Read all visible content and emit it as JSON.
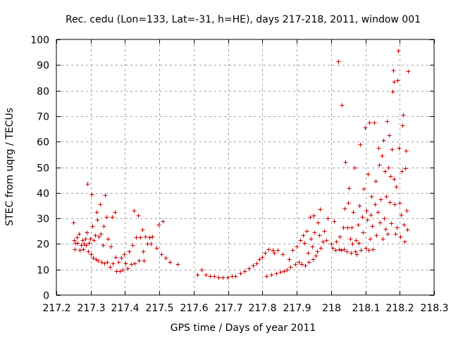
{
  "chart_data": {
    "type": "scatter",
    "title": "Rec. cedu (Lon=133, Lat=-31, h=HE), days 217-218, 2011, window 001",
    "xlabel": "GPS time / Days of year 2011",
    "ylabel": "STEC from uqrg / TECUs",
    "xlim": [
      217.2,
      218.3
    ],
    "ylim": [
      0,
      100
    ],
    "xticks": [
      217.2,
      217.3,
      217.4,
      217.5,
      217.6,
      217.7,
      217.8,
      217.9,
      218,
      218.1,
      218.2,
      218.3
    ],
    "xtick_labels": [
      "217.2",
      "217.3",
      "217.4",
      "217.5",
      "217.6",
      "217.7",
      "217.8",
      "217.9",
      "218",
      "218.1",
      "218.2",
      "218.3"
    ],
    "yticks": [
      0,
      10,
      20,
      30,
      40,
      50,
      60,
      70,
      80,
      90,
      100
    ],
    "ytick_labels": [
      "0",
      "10",
      "20",
      "30",
      "40",
      "50",
      "60",
      "70",
      "80",
      "90",
      "100"
    ],
    "grid": true,
    "marker": "+",
    "color": "#cc0000",
    "series": [
      {
        "name": "STEC",
        "points": [
          [
            217.25,
            28.5
          ],
          [
            217.252,
            21.5
          ],
          [
            217.254,
            18.0
          ],
          [
            217.256,
            20.5
          ],
          [
            217.26,
            22.5
          ],
          [
            217.262,
            20.5
          ],
          [
            217.265,
            24.0
          ],
          [
            217.268,
            17.5
          ],
          [
            217.272,
            19.5
          ],
          [
            217.275,
            21.5
          ],
          [
            217.278,
            18.0
          ],
          [
            217.281,
            20.0
          ],
          [
            217.284,
            22.0
          ],
          [
            217.287,
            19.5
          ],
          [
            217.289,
            24.5
          ],
          [
            217.29,
            43.5
          ],
          [
            217.292,
            17.0
          ],
          [
            217.295,
            20.5
          ],
          [
            217.298,
            22.0
          ],
          [
            217.3,
            16.0
          ],
          [
            217.302,
            39.5
          ],
          [
            217.304,
            27.0
          ],
          [
            217.306,
            14.5
          ],
          [
            217.308,
            21.5
          ],
          [
            217.312,
            23.5
          ],
          [
            217.315,
            14.0
          ],
          [
            217.318,
            32.5
          ],
          [
            217.32,
            29.5
          ],
          [
            217.322,
            13.5
          ],
          [
            217.324,
            23.0
          ],
          [
            217.328,
            35.5
          ],
          [
            217.33,
            24.0
          ],
          [
            217.332,
            13.0
          ],
          [
            217.335,
            19.5
          ],
          [
            217.338,
            27.0
          ],
          [
            217.34,
            12.5
          ],
          [
            217.342,
            39.0
          ],
          [
            217.345,
            30.5
          ],
          [
            217.348,
            13.0
          ],
          [
            217.35,
            22.0
          ],
          [
            217.355,
            11.0
          ],
          [
            217.358,
            19.0
          ],
          [
            217.362,
            30.5
          ],
          [
            217.365,
            12.5
          ],
          [
            217.37,
            32.5
          ],
          [
            217.372,
            15.0
          ],
          [
            217.375,
            9.5
          ],
          [
            217.38,
            13.0
          ],
          [
            217.385,
            9.5
          ],
          [
            217.388,
            14.5
          ],
          [
            217.392,
            10.0
          ],
          [
            217.398,
            16.0
          ],
          [
            217.402,
            12.5
          ],
          [
            217.408,
            10.5
          ],
          [
            217.412,
            17.0
          ],
          [
            217.418,
            12.0
          ],
          [
            217.422,
            19.5
          ],
          [
            217.425,
            33.0
          ],
          [
            217.428,
            12.5
          ],
          [
            217.432,
            22.5
          ],
          [
            217.438,
            31.0
          ],
          [
            217.44,
            13.5
          ],
          [
            217.445,
            22.5
          ],
          [
            217.45,
            25.5
          ],
          [
            217.452,
            17.0
          ],
          [
            217.455,
            13.5
          ],
          [
            217.458,
            23.0
          ],
          [
            217.465,
            20.0
          ],
          [
            217.47,
            22.5
          ],
          [
            217.475,
            20.0
          ],
          [
            217.48,
            23.0
          ],
          [
            217.492,
            18.5
          ],
          [
            217.498,
            27.5
          ],
          [
            217.505,
            16.0
          ],
          [
            217.51,
            29.0
          ],
          [
            217.518,
            14.5
          ],
          [
            217.53,
            13.0
          ],
          [
            217.552,
            12.0
          ],
          [
            217.61,
            8.0
          ],
          [
            217.622,
            10.0
          ],
          [
            217.635,
            8.0
          ],
          [
            217.648,
            7.5
          ],
          [
            217.66,
            7.5
          ],
          [
            217.672,
            7.0
          ],
          [
            217.685,
            7.0
          ],
          [
            217.698,
            7.0
          ],
          [
            217.71,
            7.5
          ],
          [
            217.722,
            7.5
          ],
          [
            217.735,
            8.5
          ],
          [
            217.748,
            9.5
          ],
          [
            217.76,
            10.5
          ],
          [
            217.772,
            11.5
          ],
          [
            217.782,
            12.5
          ],
          [
            217.792,
            14.0
          ],
          [
            217.8,
            15.0
          ],
          [
            217.808,
            16.5
          ],
          [
            217.812,
            7.5
          ],
          [
            217.818,
            18.0
          ],
          [
            217.825,
            8.0
          ],
          [
            217.83,
            17.5
          ],
          [
            217.835,
            16.5
          ],
          [
            217.84,
            8.5
          ],
          [
            217.845,
            17.5
          ],
          [
            217.852,
            9.0
          ],
          [
            217.858,
            16.0
          ],
          [
            217.862,
            9.5
          ],
          [
            217.872,
            10.0
          ],
          [
            217.878,
            14.0
          ],
          [
            217.882,
            11.0
          ],
          [
            217.888,
            17.5
          ],
          [
            217.895,
            12.0
          ],
          [
            217.9,
            19.0
          ],
          [
            217.905,
            13.0
          ],
          [
            217.91,
            21.5
          ],
          [
            217.915,
            12.0
          ],
          [
            217.918,
            23.5
          ],
          [
            217.922,
            20.5
          ],
          [
            217.925,
            11.5
          ],
          [
            217.928,
            25.0
          ],
          [
            217.932,
            16.5
          ],
          [
            217.935,
            13.0
          ],
          [
            217.938,
            30.5
          ],
          [
            217.94,
            22.0
          ],
          [
            217.944,
            19.0
          ],
          [
            217.946,
            14.0
          ],
          [
            217.95,
            31.0
          ],
          [
            217.952,
            24.5
          ],
          [
            217.955,
            15.5
          ],
          [
            217.96,
            17.0
          ],
          [
            217.962,
            28.5
          ],
          [
            217.965,
            23.5
          ],
          [
            217.968,
            33.5
          ],
          [
            217.97,
            18.5
          ],
          [
            217.975,
            21.0
          ],
          [
            217.98,
            25.0
          ],
          [
            217.985,
            21.5
          ],
          [
            217.99,
            30.0
          ],
          [
            218.0,
            20.0
          ],
          [
            218.005,
            18.5
          ],
          [
            218.008,
            29.0
          ],
          [
            218.012,
            17.5
          ],
          [
            218.015,
            21.0
          ],
          [
            218.02,
            91.5
          ],
          [
            218.022,
            18.0
          ],
          [
            218.025,
            23.0
          ],
          [
            218.03,
            17.5
          ],
          [
            218.032,
            74.5
          ],
          [
            218.035,
            26.5
          ],
          [
            218.038,
            18.0
          ],
          [
            218.04,
            34.0
          ],
          [
            218.042,
            52.0
          ],
          [
            218.045,
            17.0
          ],
          [
            218.048,
            26.5
          ],
          [
            218.05,
            36.0
          ],
          [
            218.052,
            42.0
          ],
          [
            218.055,
            22.0
          ],
          [
            218.058,
            16.5
          ],
          [
            218.06,
            26.5
          ],
          [
            218.062,
            20.0
          ],
          [
            218.065,
            32.5
          ],
          [
            218.068,
            50.0
          ],
          [
            218.07,
            17.0
          ],
          [
            218.072,
            21.5
          ],
          [
            218.075,
            16.0
          ],
          [
            218.078,
            27.5
          ],
          [
            218.08,
            20.5
          ],
          [
            218.082,
            35.0
          ],
          [
            218.085,
            59.0
          ],
          [
            218.087,
            17.5
          ],
          [
            218.09,
            30.5
          ],
          [
            218.092,
            24.5
          ],
          [
            218.095,
            41.5
          ],
          [
            218.098,
            65.5
          ],
          [
            218.1,
            18.5
          ],
          [
            218.102,
            33.0
          ],
          [
            218.105,
            29.5
          ],
          [
            218.108,
            47.5
          ],
          [
            218.11,
            17.5
          ],
          [
            218.112,
            67.5
          ],
          [
            218.114,
            22.0
          ],
          [
            218.116,
            31.5
          ],
          [
            218.118,
            38.5
          ],
          [
            218.12,
            27.0
          ],
          [
            218.122,
            18.0
          ],
          [
            218.125,
            67.5
          ],
          [
            218.128,
            35.5
          ],
          [
            218.13,
            44.5
          ],
          [
            218.132,
            23.5
          ],
          [
            218.135,
            32.5
          ],
          [
            218.138,
            57.5
          ],
          [
            218.14,
            51.0
          ],
          [
            218.142,
            28.5
          ],
          [
            218.145,
            37.5
          ],
          [
            218.148,
            54.5
          ],
          [
            218.15,
            22.0
          ],
          [
            218.152,
            60.5
          ],
          [
            218.154,
            30.0
          ],
          [
            218.156,
            48.5
          ],
          [
            218.158,
            26.0
          ],
          [
            218.16,
            38.5
          ],
          [
            218.162,
            68.0
          ],
          [
            218.164,
            24.0
          ],
          [
            218.166,
            50.0
          ],
          [
            218.168,
            62.5
          ],
          [
            218.17,
            36.5
          ],
          [
            218.172,
            46.5
          ],
          [
            218.174,
            28.0
          ],
          [
            218.176,
            57.0
          ],
          [
            218.178,
            79.5
          ],
          [
            218.18,
            88.0
          ],
          [
            218.182,
            83.5
          ],
          [
            218.184,
            45.5
          ],
          [
            218.186,
            35.5
          ],
          [
            218.188,
            24.0
          ],
          [
            218.19,
            42.5
          ],
          [
            218.192,
            26.5
          ],
          [
            218.194,
            84.0
          ],
          [
            218.196,
            95.5
          ],
          [
            218.198,
            57.5
          ],
          [
            218.2,
            36.0
          ],
          [
            218.202,
            23.0
          ],
          [
            218.204,
            31.5
          ],
          [
            218.206,
            48.5
          ],
          [
            218.208,
            66.5
          ],
          [
            218.21,
            70.5
          ],
          [
            218.212,
            27.5
          ],
          [
            218.214,
            21.0
          ],
          [
            218.216,
            49.5
          ],
          [
            218.218,
            56.5
          ],
          [
            218.22,
            33.0
          ],
          [
            218.222,
            25.5
          ],
          [
            218.224,
            87.5
          ]
        ]
      }
    ]
  }
}
